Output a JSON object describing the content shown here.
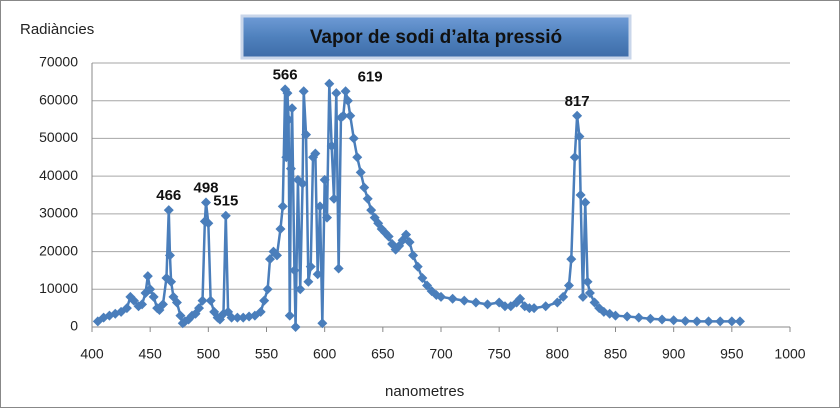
{
  "chart_data": {
    "type": "line",
    "title": "Vapor de sodi d’alta pressió",
    "y_label": "Radiàncies",
    "x_label": "nanometres",
    "color": "#4a7ebb",
    "grid": true,
    "xlim": [
      400,
      1000
    ],
    "xticks": [
      400,
      450,
      500,
      550,
      600,
      650,
      700,
      750,
      800,
      850,
      900,
      950,
      1000
    ],
    "ylim": [
      0,
      70000
    ],
    "yticks": [
      0,
      10000,
      20000,
      30000,
      40000,
      50000,
      60000,
      70000
    ],
    "annotations": [
      "466",
      "498",
      "515",
      "566",
      "619",
      "817"
    ],
    "x": [
      405,
      410,
      415,
      420,
      425,
      430,
      433,
      436,
      440,
      443,
      446,
      448,
      450,
      453,
      456,
      458,
      461,
      464,
      466,
      467,
      468,
      470,
      473,
      476,
      478,
      480,
      483,
      486,
      489,
      492,
      495,
      497,
      498,
      500,
      502,
      505,
      508,
      510,
      513,
      515,
      517,
      520,
      525,
      530,
      535,
      540,
      545,
      548,
      551,
      553,
      556,
      559,
      562,
      564,
      566,
      567,
      568,
      569,
      570,
      571,
      572,
      574,
      575,
      577,
      579,
      581,
      582,
      584,
      586,
      588,
      590,
      592,
      594,
      596,
      598,
      600,
      602,
      604,
      606,
      608,
      610,
      612,
      614,
      616,
      618,
      620,
      622,
      625,
      628,
      631,
      634,
      637,
      640,
      643,
      646,
      649,
      652,
      655,
      658,
      661,
      664,
      667,
      670,
      673,
      676,
      680,
      684,
      688,
      692,
      696,
      700,
      710,
      720,
      730,
      740,
      750,
      755,
      760,
      765,
      768,
      772,
      776,
      780,
      790,
      800,
      805,
      810,
      812,
      815,
      817,
      819,
      820,
      822,
      824,
      826,
      828,
      832,
      836,
      840,
      845,
      850,
      860,
      870,
      880,
      890,
      900,
      910,
      920,
      930,
      940,
      950,
      957
    ],
    "values": [
      1500,
      2500,
      3000,
      3500,
      4000,
      5000,
      8000,
      7000,
      5500,
      6000,
      9000,
      13500,
      10000,
      8000,
      5000,
      4500,
      6000,
      13000,
      31000,
      19000,
      12000,
      8000,
      6500,
      3000,
      1000,
      1500,
      2000,
      3000,
      3500,
      5000,
      7000,
      28000,
      33000,
      27500,
      7000,
      4000,
      2500,
      2000,
      3500,
      29500,
      4000,
      2500,
      2500,
      2500,
      2800,
      3000,
      4000,
      7000,
      10000,
      18000,
      20000,
      19000,
      26000,
      32000,
      63000,
      45000,
      62000,
      55000,
      3000,
      42000,
      58000,
      15000,
      0,
      39000,
      10000,
      38000,
      62500,
      51000,
      12000,
      16000,
      45000,
      46000,
      14000,
      32000,
      1000,
      39000,
      29000,
      64500,
      48000,
      34000,
      62000,
      15500,
      55500,
      56000,
      62500,
      60000,
      56000,
      50000,
      45000,
      41000,
      37000,
      34000,
      31000,
      29000,
      27500,
      26000,
      25000,
      24000,
      22000,
      20500,
      21500,
      23000,
      24500,
      22500,
      19000,
      16000,
      13000,
      11000,
      9500,
      8500,
      8000,
      7500,
      7000,
      6500,
      6000,
      6500,
      5500,
      5500,
      6500,
      7500,
      5500,
      5000,
      5000,
      5500,
      6500,
      8000,
      11000,
      18000,
      45000,
      56000,
      50500,
      35000,
      8000,
      33000,
      12000,
      9000,
      6500,
      5000,
      4000,
      3500,
      3000,
      2800,
      2500,
      2200,
      2000,
      1800,
      1600,
      1500,
      1500,
      1500,
      1500,
      1500
    ]
  }
}
